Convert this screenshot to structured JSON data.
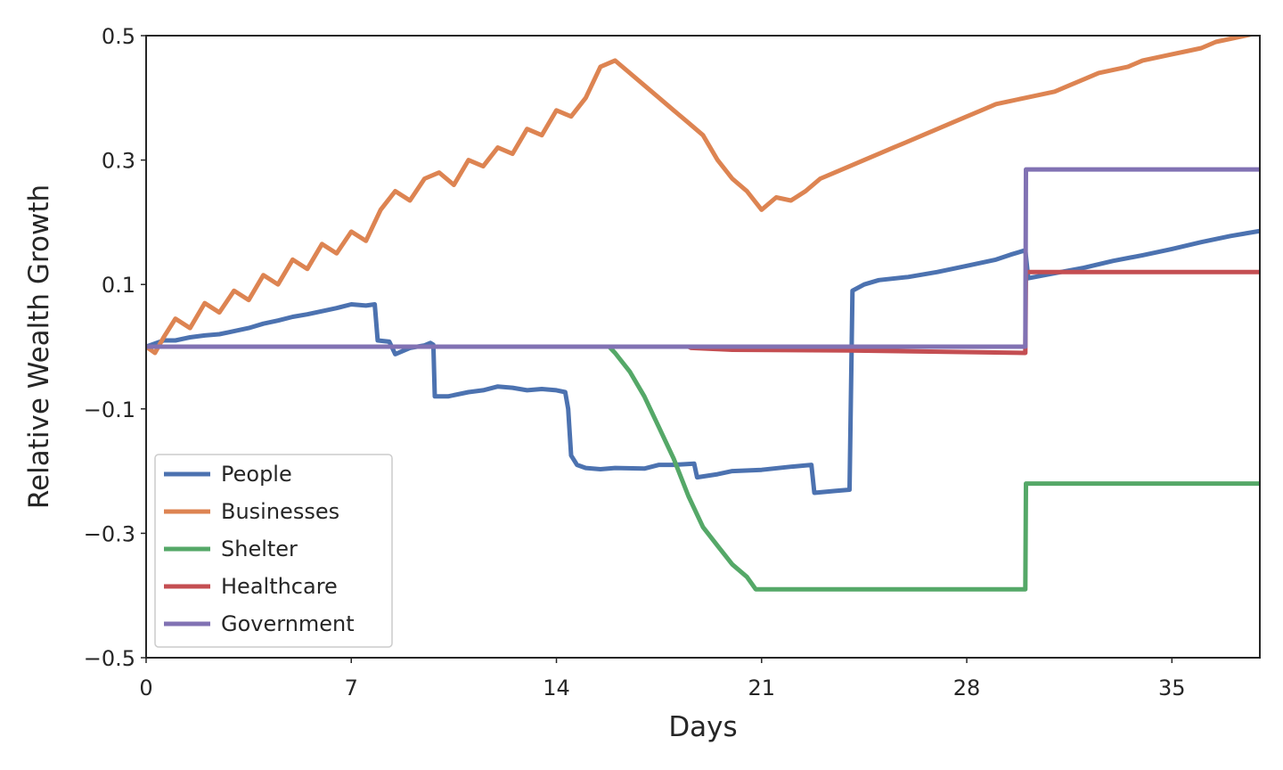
{
  "chart_data": {
    "type": "line",
    "title": "",
    "xlabel": "Days",
    "ylabel": "Relative Wealth Growth",
    "xlim": [
      0,
      38
    ],
    "ylim": [
      -0.5,
      0.5
    ],
    "xticks": [
      "0",
      "7",
      "14",
      "21",
      "28",
      "35"
    ],
    "xtick_values": [
      0,
      7,
      14,
      21,
      28,
      35
    ],
    "yticks": [
      "0.5",
      "0.3",
      "0.1",
      "−0.1",
      "−0.3",
      "−0.5"
    ],
    "ytick_values": [
      0.5,
      0.3,
      0.1,
      -0.1,
      -0.3,
      -0.5
    ],
    "grid": false,
    "legend_position": "lower-left",
    "series": [
      {
        "name": "People",
        "color": "#4c72b0",
        "points": [
          [
            0,
            0
          ],
          [
            0.3,
            0.005
          ],
          [
            0.6,
            0.01
          ],
          [
            1,
            0.01
          ],
          [
            1.5,
            0.015
          ],
          [
            2,
            0.018
          ],
          [
            2.5,
            0.02
          ],
          [
            3,
            0.025
          ],
          [
            3.5,
            0.03
          ],
          [
            4,
            0.037
          ],
          [
            4.5,
            0.042
          ],
          [
            5,
            0.048
          ],
          [
            5.5,
            0.052
          ],
          [
            6,
            0.057
          ],
          [
            6.5,
            0.062
          ],
          [
            7,
            0.068
          ],
          [
            7.5,
            0.066
          ],
          [
            7.8,
            0.068
          ],
          [
            7.9,
            0.01
          ],
          [
            8.3,
            0.008
          ],
          [
            8.5,
            -0.012
          ],
          [
            9,
            -0.002
          ],
          [
            9.5,
            0.002
          ],
          [
            9.7,
            0.006
          ],
          [
            9.8,
            0.003
          ],
          [
            9.85,
            -0.08
          ],
          [
            10.3,
            -0.08
          ],
          [
            11,
            -0.073
          ],
          [
            11.5,
            -0.07
          ],
          [
            12,
            -0.064
          ],
          [
            12.5,
            -0.066
          ],
          [
            13,
            -0.07
          ],
          [
            13.5,
            -0.068
          ],
          [
            14,
            -0.07
          ],
          [
            14.3,
            -0.073
          ],
          [
            14.4,
            -0.1
          ],
          [
            14.5,
            -0.175
          ],
          [
            14.7,
            -0.19
          ],
          [
            15,
            -0.195
          ],
          [
            15.5,
            -0.197
          ],
          [
            16,
            -0.195
          ],
          [
            17,
            -0.196
          ],
          [
            17.5,
            -0.19
          ],
          [
            18,
            -0.19
          ],
          [
            18.7,
            -0.188
          ],
          [
            18.8,
            -0.21
          ],
          [
            19.5,
            -0.205
          ],
          [
            20,
            -0.2
          ],
          [
            21,
            -0.198
          ],
          [
            22,
            -0.193
          ],
          [
            22.7,
            -0.19
          ],
          [
            22.8,
            -0.235
          ],
          [
            23.5,
            -0.232
          ],
          [
            24,
            -0.23
          ],
          [
            24.1,
            0.09
          ],
          [
            24.5,
            0.1
          ],
          [
            25,
            0.107
          ],
          [
            26,
            0.112
          ],
          [
            27,
            0.12
          ],
          [
            28,
            0.13
          ],
          [
            29,
            0.14
          ],
          [
            29.5,
            0.148
          ],
          [
            30,
            0.155
          ],
          [
            30.1,
            0.11
          ],
          [
            31,
            0.118
          ],
          [
            32,
            0.127
          ],
          [
            33,
            0.138
          ],
          [
            34,
            0.147
          ],
          [
            35,
            0.157
          ],
          [
            36,
            0.168
          ],
          [
            37,
            0.178
          ],
          [
            38,
            0.186
          ]
        ]
      },
      {
        "name": "Businesses",
        "color": "#dd8452",
        "points": [
          [
            0,
            0
          ],
          [
            0.3,
            -0.01
          ],
          [
            0.6,
            0.015
          ],
          [
            1,
            0.045
          ],
          [
            1.5,
            0.03
          ],
          [
            2,
            0.07
          ],
          [
            2.5,
            0.055
          ],
          [
            3,
            0.09
          ],
          [
            3.5,
            0.075
          ],
          [
            4,
            0.115
          ],
          [
            4.5,
            0.1
          ],
          [
            5,
            0.14
          ],
          [
            5.5,
            0.125
          ],
          [
            6,
            0.165
          ],
          [
            6.5,
            0.15
          ],
          [
            7,
            0.185
          ],
          [
            7.5,
            0.17
          ],
          [
            8,
            0.22
          ],
          [
            8.5,
            0.25
          ],
          [
            9,
            0.235
          ],
          [
            9.5,
            0.27
          ],
          [
            10,
            0.28
          ],
          [
            10.5,
            0.26
          ],
          [
            11,
            0.3
          ],
          [
            11.5,
            0.29
          ],
          [
            12,
            0.32
          ],
          [
            12.5,
            0.31
          ],
          [
            13,
            0.35
          ],
          [
            13.5,
            0.34
          ],
          [
            14,
            0.38
          ],
          [
            14.5,
            0.37
          ],
          [
            15,
            0.4
          ],
          [
            15.5,
            0.45
          ],
          [
            16,
            0.46
          ],
          [
            16.5,
            0.44
          ],
          [
            17,
            0.42
          ],
          [
            17.5,
            0.4
          ],
          [
            18,
            0.38
          ],
          [
            18.5,
            0.36
          ],
          [
            19,
            0.34
          ],
          [
            19.5,
            0.3
          ],
          [
            20,
            0.27
          ],
          [
            20.5,
            0.25
          ],
          [
            21,
            0.22
          ],
          [
            21.5,
            0.24
          ],
          [
            22,
            0.235
          ],
          [
            22.5,
            0.25
          ],
          [
            23,
            0.27
          ],
          [
            23.5,
            0.28
          ],
          [
            24,
            0.29
          ],
          [
            24.5,
            0.3
          ],
          [
            25,
            0.31
          ],
          [
            25.5,
            0.32
          ],
          [
            26,
            0.33
          ],
          [
            26.5,
            0.34
          ],
          [
            27,
            0.35
          ],
          [
            27.5,
            0.36
          ],
          [
            28,
            0.37
          ],
          [
            28.5,
            0.38
          ],
          [
            29,
            0.39
          ],
          [
            29.5,
            0.395
          ],
          [
            30,
            0.4
          ],
          [
            30.5,
            0.405
          ],
          [
            31,
            0.41
          ],
          [
            31.5,
            0.42
          ],
          [
            32,
            0.43
          ],
          [
            32.5,
            0.44
          ],
          [
            33,
            0.445
          ],
          [
            33.5,
            0.45
          ],
          [
            34,
            0.46
          ],
          [
            34.5,
            0.465
          ],
          [
            35,
            0.47
          ],
          [
            35.5,
            0.475
          ],
          [
            36,
            0.48
          ],
          [
            36.5,
            0.49
          ],
          [
            37,
            0.495
          ],
          [
            37.5,
            0.5
          ],
          [
            38,
            0.505
          ]
        ]
      },
      {
        "name": "Shelter",
        "color": "#55a868",
        "points": [
          [
            0,
            0
          ],
          [
            15.8,
            0
          ],
          [
            16,
            -0.01
          ],
          [
            16.5,
            -0.04
          ],
          [
            17,
            -0.08
          ],
          [
            17.5,
            -0.13
          ],
          [
            18,
            -0.18
          ],
          [
            18.5,
            -0.24
          ],
          [
            19,
            -0.29
          ],
          [
            19.5,
            -0.32
          ],
          [
            20,
            -0.35
          ],
          [
            20.5,
            -0.37
          ],
          [
            20.8,
            -0.39
          ],
          [
            21,
            -0.39
          ],
          [
            30,
            -0.39
          ],
          [
            30.02,
            -0.22
          ],
          [
            38,
            -0.22
          ]
        ]
      },
      {
        "name": "Healthcare",
        "color": "#c44e52",
        "points": [
          [
            0,
            0
          ],
          [
            18.5,
            0
          ],
          [
            18.6,
            -0.002
          ],
          [
            20,
            -0.005
          ],
          [
            24,
            -0.006
          ],
          [
            30,
            -0.01
          ],
          [
            30.02,
            0.12
          ],
          [
            38,
            0.12
          ]
        ]
      },
      {
        "name": "Government",
        "color": "#8172b3",
        "points": [
          [
            0,
            0
          ],
          [
            30,
            0
          ],
          [
            30.02,
            0.285
          ],
          [
            38,
            0.285
          ]
        ]
      }
    ]
  }
}
